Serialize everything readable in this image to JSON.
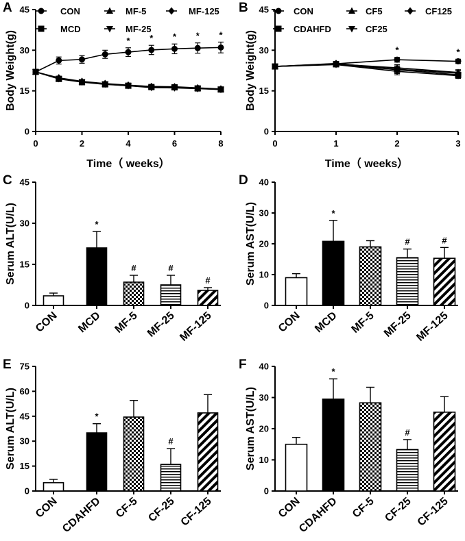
{
  "chart_data": [
    {
      "panel": "A",
      "type": "line",
      "xlabel": "Time（ weeks）",
      "ylabel": "Body Weight(g)",
      "x": [
        0,
        1,
        2,
        3,
        4,
        5,
        6,
        7,
        8
      ],
      "xticks": [
        "0",
        "2",
        "4",
        "6",
        "8"
      ],
      "yticks": [
        "0",
        "15",
        "30",
        "45"
      ],
      "xlim": [
        0,
        8
      ],
      "ylim": [
        0,
        45
      ],
      "legend": "top",
      "series": [
        {
          "name": "CON",
          "marker": "circle",
          "values": [
            22.0,
            26.2,
            26.6,
            28.5,
            29.3,
            30.1,
            30.5,
            30.8,
            31.0
          ],
          "errors": [
            0.8,
            1.3,
            1.4,
            1.5,
            1.6,
            1.7,
            1.8,
            1.9,
            2.0
          ],
          "annotations": [
            {
              "x": 4,
              "text": "*"
            },
            {
              "x": 5,
              "text": "*"
            },
            {
              "x": 6,
              "text": "*"
            },
            {
              "x": 7,
              "text": "*"
            },
            {
              "x": 8,
              "text": "*"
            }
          ]
        },
        {
          "name": "MCD",
          "marker": "square",
          "values": [
            22.0,
            19.4,
            18.2,
            17.4,
            16.9,
            16.4,
            16.3,
            15.9,
            15.5
          ],
          "errors": [
            0.6,
            0.6,
            0.6,
            0.6,
            0.5,
            0.5,
            0.5,
            0.5,
            0.5
          ]
        },
        {
          "name": "MF-5",
          "marker": "triangle-up",
          "values": [
            22.0,
            19.6,
            18.4,
            17.6,
            17.0,
            16.6,
            16.4,
            16.0,
            15.6
          ],
          "errors": [
            0.6,
            0.6,
            0.5,
            0.5,
            0.5,
            0.5,
            0.5,
            0.5,
            0.5
          ]
        },
        {
          "name": "MF-25",
          "marker": "triangle-down",
          "values": [
            22.0,
            19.5,
            18.3,
            17.5,
            16.9,
            16.2,
            16.1,
            15.8,
            15.5
          ],
          "errors": [
            0.6,
            0.6,
            0.5,
            0.5,
            0.5,
            0.5,
            0.5,
            0.5,
            0.5
          ]
        },
        {
          "name": "MF-125",
          "marker": "diamond",
          "values": [
            22.0,
            19.8,
            18.5,
            17.7,
            17.1,
            16.6,
            16.5,
            16.1,
            15.7
          ],
          "errors": [
            0.6,
            0.6,
            0.5,
            0.5,
            0.5,
            0.5,
            0.5,
            0.5,
            0.5
          ]
        }
      ]
    },
    {
      "panel": "B",
      "type": "line",
      "xlabel": "Time（ weeks）",
      "ylabel": "Body Weight(g)",
      "x": [
        0,
        1,
        2,
        3
      ],
      "xticks": [
        "0",
        "1",
        "2",
        "3"
      ],
      "yticks": [
        "0",
        "15",
        "30",
        "45"
      ],
      "xlim": [
        0,
        3
      ],
      "ylim": [
        0,
        45
      ],
      "legend": "top",
      "series": [
        {
          "name": "CON",
          "marker": "circle",
          "values": [
            24.0,
            25.0,
            26.5,
            25.9
          ],
          "errors": [
            0.9,
            0.8,
            0.9,
            0.8
          ],
          "annotations": [
            {
              "x": 2,
              "text": "*"
            },
            {
              "x": 3,
              "text": "*"
            }
          ]
        },
        {
          "name": "CDAHFD",
          "marker": "square",
          "values": [
            24.0,
            24.8,
            22.8,
            20.9
          ],
          "errors": [
            0.8,
            0.8,
            1.4,
            1.0
          ]
        },
        {
          "name": "CF5",
          "marker": "triangle-up",
          "values": [
            24.0,
            24.9,
            23.5,
            21.8
          ],
          "errors": [
            0.8,
            0.8,
            1.2,
            1.0
          ]
        },
        {
          "name": "CF25",
          "marker": "triangle-down",
          "values": [
            24.0,
            24.7,
            22.2,
            20.6
          ],
          "errors": [
            0.8,
            0.8,
            1.3,
            1.0
          ]
        },
        {
          "name": "CF125",
          "marker": "diamond",
          "values": [
            24.0,
            25.1,
            23.0,
            21.5
          ],
          "errors": [
            0.8,
            0.8,
            1.2,
            1.0
          ]
        }
      ]
    },
    {
      "panel": "C",
      "type": "bar",
      "ylabel": "Serum ALT(U/L)",
      "categories": [
        "CON",
        "MCD",
        "MF-5",
        "MF-25",
        "MF-125"
      ],
      "values": [
        3.5,
        21,
        8.5,
        7.5,
        5.5
      ],
      "errors": [
        1,
        6,
        2.5,
        3.5,
        1
      ],
      "patterns": [
        "white",
        "black",
        "checker",
        "hlines",
        "diag"
      ],
      "annotations": [
        "",
        "*",
        "#",
        "#",
        "#"
      ],
      "ylim": [
        0,
        45
      ],
      "yticks": [
        "0",
        "15",
        "30",
        "45"
      ]
    },
    {
      "panel": "D",
      "type": "bar",
      "ylabel": "Serum AST(U/L)",
      "categories": [
        "CON",
        "MCD",
        "MF-5",
        "MF-25",
        "MF-125"
      ],
      "values": [
        9,
        20.8,
        19,
        15.5,
        15.3
      ],
      "errors": [
        1.3,
        6.8,
        2,
        2.8,
        3.5
      ],
      "patterns": [
        "white",
        "black",
        "checker",
        "hlines",
        "diag"
      ],
      "annotations": [
        "",
        "*",
        "",
        "#",
        "#"
      ],
      "ylim": [
        0,
        40
      ],
      "yticks": [
        "0",
        "10",
        "20",
        "30",
        "40"
      ]
    },
    {
      "panel": "E",
      "type": "bar",
      "ylabel": "Serum ALT(U/L)",
      "categories": [
        "CON",
        "CDAHFD",
        "CF-5",
        "CF-25",
        "CF-125"
      ],
      "values": [
        5,
        35,
        44.5,
        16,
        47
      ],
      "errors": [
        2,
        5.5,
        10,
        9.5,
        11
      ],
      "patterns": [
        "white",
        "black",
        "checker",
        "hlines",
        "diag"
      ],
      "annotations": [
        "",
        "*",
        "",
        "#",
        ""
      ],
      "ylim": [
        0,
        75
      ],
      "yticks": [
        "0",
        "15",
        "30",
        "45",
        "60",
        "75"
      ]
    },
    {
      "panel": "F",
      "type": "bar",
      "ylabel": "Serum AST(U/L)",
      "categories": [
        "CON",
        "CDAHFD",
        "CF-5",
        "CF-25",
        "CF-125"
      ],
      "values": [
        15,
        29.5,
        28.3,
        13.3,
        25.3
      ],
      "errors": [
        2.2,
        6.5,
        5,
        3.2,
        5
      ],
      "patterns": [
        "white",
        "black",
        "checker",
        "hlines",
        "diag"
      ],
      "annotations": [
        "",
        "*",
        "",
        "#",
        ""
      ],
      "ylim": [
        0,
        40
      ],
      "yticks": [
        "0",
        "10",
        "20",
        "30",
        "40"
      ]
    }
  ]
}
